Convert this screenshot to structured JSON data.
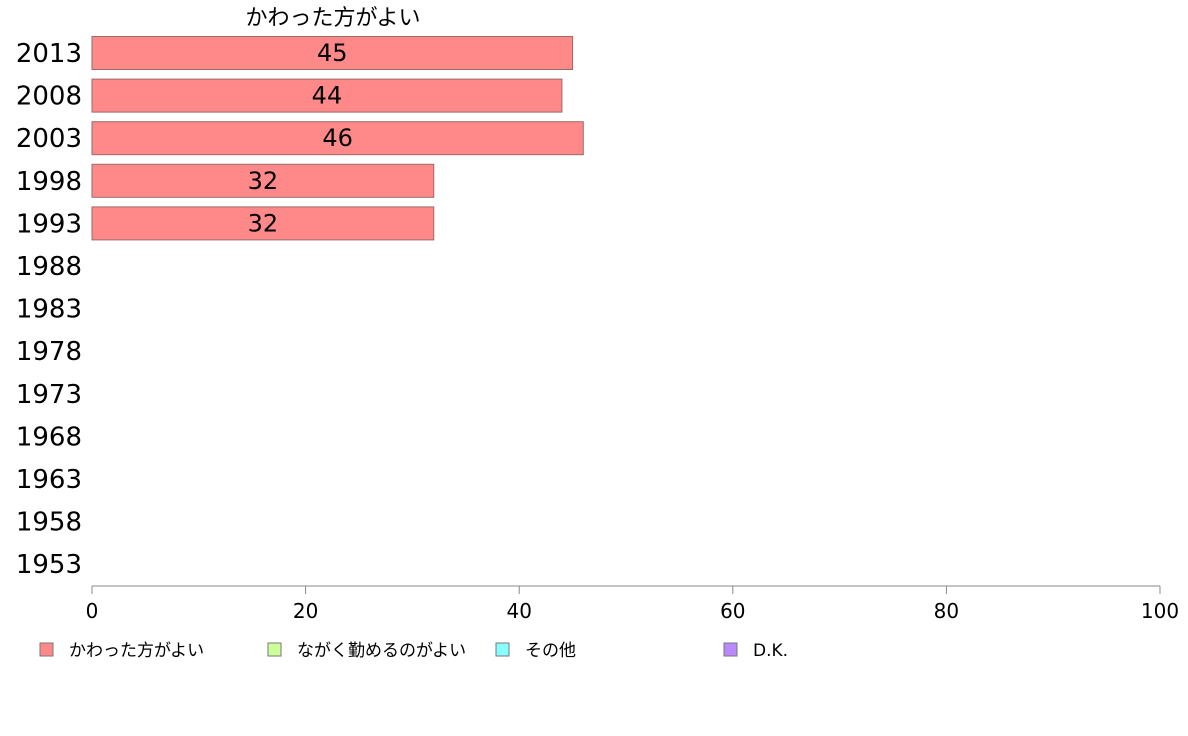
{
  "chart_data": {
    "type": "bar",
    "orientation": "horizontal",
    "stacked": true,
    "column_title": "かわった方がよい",
    "categories": [
      "2013",
      "2008",
      "2003",
      "1998",
      "1993",
      "1988",
      "1983",
      "1978",
      "1973",
      "1968",
      "1963",
      "1958",
      "1953"
    ],
    "series": [
      {
        "name": "かわった方がよい",
        "color": "#ff8888",
        "values": [
          45,
          44,
          46,
          32,
          32,
          null,
          null,
          null,
          null,
          null,
          null,
          null,
          null
        ],
        "labels": [
          "45",
          "44",
          "46",
          "32",
          "32",
          "",
          "",
          "",
          "",
          "",
          "",
          "",
          ""
        ]
      },
      {
        "name": "ながく勤めるのがよい",
        "color": "#ccff99",
        "values": [
          null,
          null,
          null,
          null,
          null,
          null,
          null,
          null,
          null,
          null,
          null,
          null,
          null
        ]
      },
      {
        "name": "その他",
        "color": "#88ffff",
        "values": [
          null,
          null,
          null,
          null,
          null,
          null,
          null,
          null,
          null,
          null,
          null,
          null,
          null
        ]
      },
      {
        "name": "D.K.",
        "color": "#bb88ff",
        "values": [
          null,
          null,
          null,
          null,
          null,
          null,
          null,
          null,
          null,
          null,
          null,
          null,
          null
        ]
      }
    ],
    "xlim": [
      0,
      100
    ],
    "xticks": [
      "0",
      "20",
      "40",
      "60",
      "80",
      "100"
    ],
    "legend_position": "bottom",
    "grid": false
  }
}
